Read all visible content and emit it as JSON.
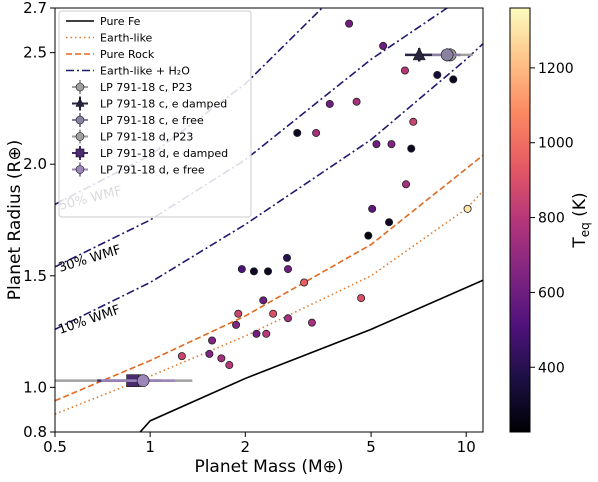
{
  "chart_data": {
    "type": "scatter",
    "xlabel": "Planet Mass (M⊕)",
    "ylabel": "Planet Radius (R⊕)",
    "xscale": "log",
    "xlim": [
      0.5,
      11.3
    ],
    "xticks": [
      0.5,
      1,
      2,
      5,
      10
    ],
    "ylim": [
      0.8,
      2.7
    ],
    "yticks": [
      0.8,
      {
        "value": 1,
        "label": "1.0"
      },
      1.5,
      {
        "value": 2,
        "label": "2.0"
      },
      2.5,
      2.7
    ],
    "lines": [
      {
        "name": "Pure Fe",
        "color": "#000000",
        "dash": "solid",
        "x": [
          0.93,
          1,
          2,
          5,
          11.3
        ],
        "y": [
          0.8,
          0.85,
          1.04,
          1.26,
          1.48
        ]
      },
      {
        "name": "Earth-like",
        "color": "#e07b2a",
        "dash": "dotted",
        "x": [
          0.5,
          1,
          2,
          5,
          10,
          11.3
        ],
        "y": [
          0.88,
          1.05,
          1.23,
          1.5,
          1.8,
          1.88
        ]
      },
      {
        "name": "Pure Rock",
        "color": "#e06a20",
        "dash": "dashed",
        "x": [
          0.5,
          1,
          2,
          5,
          10,
          11.3
        ],
        "y": [
          0.94,
          1.12,
          1.32,
          1.64,
          1.98,
          2.04
        ]
      },
      {
        "name": "Earth-like + H₂O",
        "color": "#1f1a6e",
        "dash": "dashdot",
        "x": [
          0.5,
          1,
          2,
          5,
          10,
          11.3
        ],
        "y": [
          1.26,
          1.47,
          1.73,
          2.11,
          2.47,
          2.54
        ]
      },
      {
        "color": "#1f1a6e",
        "dash": "dashdot",
        "x": [
          0.5,
          1,
          2,
          5,
          8.7
        ],
        "y": [
          1.54,
          1.75,
          2.02,
          2.47,
          2.7
        ]
      },
      {
        "color": "#1f1a6e",
        "dash": "dashdot",
        "x": [
          0.5,
          1,
          2,
          3.5
        ],
        "y": [
          1.82,
          2.04,
          2.36,
          2.7
        ]
      }
    ],
    "annotations": [
      "10% WMF",
      "30% WMF",
      "50% WMF"
    ],
    "points": {
      "x": [
        4.26,
        5.46,
        6.4,
        8.1,
        9.1,
        3.7,
        4.5,
        6.8,
        2.92,
        3.35,
        5.2,
        5.8,
        6.7,
        6.45,
        5.04,
        10.1,
        5.7,
        4.9,
        2.71,
        1.95,
        2.13,
        2.36,
        2.73,
        3.07,
        2.28,
        4.65,
        1.9,
        2.45,
        2.73,
        3.25,
        1.87,
        2.33,
        2.17,
        1.57,
        1.54,
        1.68,
        1.26,
        1.78
      ],
      "y": [
        2.63,
        2.53,
        2.42,
        2.4,
        2.38,
        2.27,
        2.28,
        2.19,
        2.14,
        2.14,
        2.09,
        2.09,
        2.07,
        1.91,
        1.8,
        1.8,
        1.74,
        1.68,
        1.58,
        1.53,
        1.52,
        1.52,
        1.53,
        1.47,
        1.39,
        1.4,
        1.33,
        1.33,
        1.31,
        1.29,
        1.28,
        1.24,
        1.24,
        1.21,
        1.15,
        1.13,
        1.14,
        1.1
      ],
      "teq": [
        600,
        600,
        800,
        350,
        300,
        600,
        750,
        850,
        300,
        750,
        600,
        650,
        300,
        750,
        550,
        1300,
        300,
        250,
        400,
        500,
        300,
        300,
        600,
        950,
        600,
        900,
        850,
        900,
        750,
        750,
        650,
        800,
        600,
        650,
        650,
        750,
        850,
        800
      ]
    },
    "errorbars": [
      {
        "name": "LP 791-18 c, P23",
        "color": "#a0a0a0",
        "marker": "o",
        "x": 8.9,
        "xerr": 1.6,
        "y": 2.49,
        "yerr": 0.03
      },
      {
        "name": "LP 791-18 c, e damped",
        "color": "#2a2440",
        "marker": "^",
        "x": 7.1,
        "xerr": 0.7,
        "y": 2.49,
        "yerr": 0.03
      },
      {
        "name": "LP 791-18 c, e free",
        "color": "#8a82a0",
        "marker": "o",
        "x": 8.7,
        "xerr": 0.9,
        "y": 2.49,
        "yerr": 0.03
      },
      {
        "name": "LP 791-18 d, P23",
        "color": "#a0a0a0",
        "marker": "o",
        "x": 0.93,
        "xerr": 0.43,
        "y": 1.03,
        "yerr": 0.02
      },
      {
        "name": "LP 791-18 d, e damped",
        "color": "#4a2a70",
        "marker": "s",
        "x": 0.88,
        "xerr": 0.2,
        "y": 1.03,
        "yerr": 0.02
      },
      {
        "name": "LP 791-18 d, e free",
        "color": "#9a86b8",
        "marker": "o",
        "x": 0.95,
        "xerr": 0.25,
        "y": 1.03,
        "yerr": 0.02
      }
    ],
    "colorbar": {
      "label_main": "T",
      "label_sub": "eq",
      "label_rest": " (K)",
      "lim": [
        227,
        1360
      ],
      "ticks": [
        400,
        600,
        800,
        1000,
        1200
      ],
      "colormap": [
        "#000004",
        "#1c1044",
        "#4f127b",
        "#812581",
        "#b5367a",
        "#e55964",
        "#fb8761",
        "#fec287",
        "#fcfdbf"
      ]
    }
  }
}
